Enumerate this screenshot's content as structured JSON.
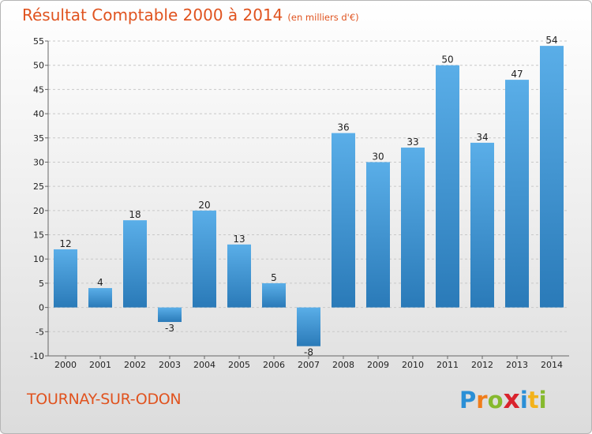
{
  "header": {
    "title": "Résultat Comptable 2000 à 2014",
    "subtitle": "(en milliers d'€)"
  },
  "footer": {
    "commune": "TOURNAY-SUR-ODON",
    "logo_letters": [
      "P",
      "r",
      "o",
      "x",
      "i",
      "t",
      "i"
    ],
    "logo_colors": [
      "#2a8fd6",
      "#f07d1b",
      "#86b92e",
      "#d9232d",
      "#2a8fd6",
      "#f3b21b",
      "#86b92e"
    ]
  },
  "colors": {
    "bar_light": "#5aaee8",
    "bar_dark": "#2a7ab8",
    "title": "#e0531f"
  },
  "chart_data": {
    "type": "bar",
    "title": "Résultat Comptable 2000 à 2014",
    "subtitle": "(en milliers d'€)",
    "categories": [
      "2000",
      "2001",
      "2002",
      "2003",
      "2004",
      "2005",
      "2006",
      "2007",
      "2008",
      "2009",
      "2010",
      "2011",
      "2012",
      "2013",
      "2014"
    ],
    "values": [
      12,
      4,
      18,
      -3,
      20,
      13,
      5,
      -8,
      36,
      30,
      33,
      50,
      34,
      47,
      54
    ],
    "ylim": [
      -10,
      55
    ],
    "yticks": [
      -10,
      -5,
      0,
      5,
      10,
      15,
      20,
      25,
      30,
      35,
      40,
      45,
      50,
      55
    ],
    "grid": true
  }
}
